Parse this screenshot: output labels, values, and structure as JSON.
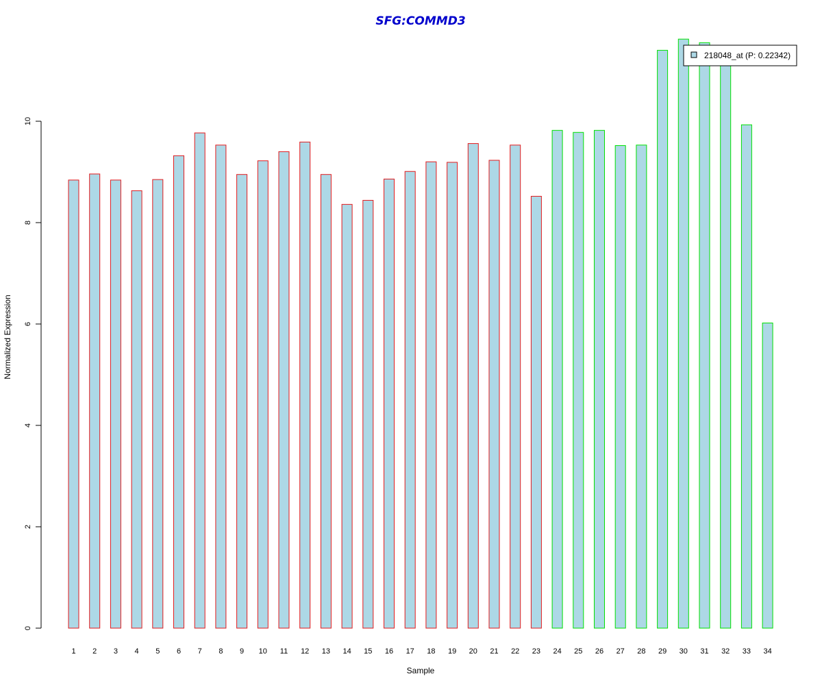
{
  "chart_data": {
    "type": "bar",
    "title": "SFG:COMMD3",
    "xlabel": "Sample",
    "ylabel": "Normalized Expression",
    "ylim": [
      0,
      12
    ],
    "yticks": [
      0,
      2,
      4,
      6,
      8,
      10
    ],
    "categories": [
      "1",
      "2",
      "3",
      "4",
      "5",
      "6",
      "7",
      "8",
      "9",
      "10",
      "11",
      "12",
      "13",
      "14",
      "15",
      "16",
      "17",
      "18",
      "19",
      "20",
      "21",
      "22",
      "23",
      "24",
      "25",
      "26",
      "27",
      "28",
      "29",
      "30",
      "31",
      "32",
      "33",
      "34"
    ],
    "series": [
      {
        "name": "218048_at (P: 0.22342)",
        "values": [
          8.84,
          8.96,
          8.84,
          8.63,
          8.85,
          9.32,
          9.77,
          9.53,
          8.95,
          9.22,
          9.4,
          9.59,
          8.95,
          8.36,
          8.44,
          8.86,
          9.01,
          9.2,
          9.19,
          9.56,
          9.23,
          9.53,
          8.52,
          9.82,
          9.78,
          9.82,
          9.52,
          9.53,
          11.4,
          11.62,
          11.55,
          11.23,
          9.93,
          6.02
        ]
      }
    ],
    "group_border_colors": [
      "#e31a1c",
      "#e31a1c",
      "#e31a1c",
      "#e31a1c",
      "#e31a1c",
      "#e31a1c",
      "#e31a1c",
      "#e31a1c",
      "#e31a1c",
      "#e31a1c",
      "#e31a1c",
      "#e31a1c",
      "#e31a1c",
      "#e31a1c",
      "#e31a1c",
      "#e31a1c",
      "#e31a1c",
      "#e31a1c",
      "#e31a1c",
      "#e31a1c",
      "#e31a1c",
      "#e31a1c",
      "#e31a1c",
      "#00e000",
      "#00e000",
      "#00e000",
      "#00e000",
      "#00e000",
      "#00e000",
      "#00e000",
      "#00e000",
      "#00e000",
      "#00e000",
      "#00e000"
    ],
    "bar_fill": "#add8e6",
    "title_color": "#0000cc",
    "legend_position": "top-right",
    "grid": false
  }
}
